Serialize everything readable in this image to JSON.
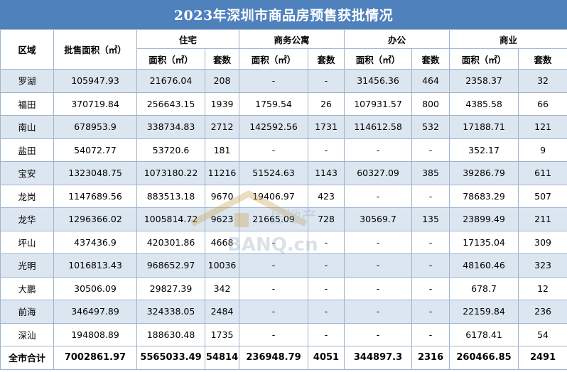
{
  "title": "2023年深圳市商品房预售获批情况",
  "headers": {
    "district": "区域",
    "total_area": "批售面积（㎡）",
    "groups": [
      "住宅",
      "商务公寓",
      "办公",
      "商业"
    ],
    "area": "面积（㎡）",
    "units": "套数"
  },
  "rows": [
    {
      "district": "罗湖",
      "total": "105947.93",
      "res_area": "21676.04",
      "res_units": "208",
      "apt_area": "-",
      "apt_units": "-",
      "off_area": "31456.36",
      "off_units": "464",
      "com_area": "2358.37",
      "com_units": "32"
    },
    {
      "district": "福田",
      "total": "370719.84",
      "res_area": "256643.15",
      "res_units": "1939",
      "apt_area": "1759.54",
      "apt_units": "26",
      "off_area": "107931.57",
      "off_units": "800",
      "com_area": "4385.58",
      "com_units": "66"
    },
    {
      "district": "南山",
      "total": "678953.9",
      "res_area": "338734.83",
      "res_units": "2712",
      "apt_area": "142592.56",
      "apt_units": "1731",
      "off_area": "114612.58",
      "off_units": "532",
      "com_area": "17188.71",
      "com_units": "121"
    },
    {
      "district": "盐田",
      "total": "54072.77",
      "res_area": "53720.6",
      "res_units": "181",
      "apt_area": "-",
      "apt_units": "-",
      "off_area": "-",
      "off_units": "-",
      "com_area": "352.17",
      "com_units": "9"
    },
    {
      "district": "宝安",
      "total": "1323048.75",
      "res_area": "1073180.22",
      "res_units": "11216",
      "apt_area": "51524.63",
      "apt_units": "1143",
      "off_area": "60327.09",
      "off_units": "385",
      "com_area": "39286.79",
      "com_units": "611"
    },
    {
      "district": "龙岗",
      "total": "1147689.56",
      "res_area": "883513.18",
      "res_units": "9670",
      "apt_area": "19406.97",
      "apt_units": "423",
      "off_area": "-",
      "off_units": "-",
      "com_area": "78683.29",
      "com_units": "507"
    },
    {
      "district": "龙华",
      "total": "1296366.02",
      "res_area": "1005814.72",
      "res_units": "9623",
      "apt_area": "21665.09",
      "apt_units": "728",
      "off_area": "30569.7",
      "off_units": "135",
      "com_area": "23899.49",
      "com_units": "211"
    },
    {
      "district": "坪山",
      "total": "437436.9",
      "res_area": "420301.86",
      "res_units": "4668",
      "apt_area": "-",
      "apt_units": "-",
      "off_area": "-",
      "off_units": "-",
      "com_area": "17135.04",
      "com_units": "309"
    },
    {
      "district": "光明",
      "total": "1016813.43",
      "res_area": "968652.97",
      "res_units": "10036",
      "apt_area": "-",
      "apt_units": "-",
      "off_area": "-",
      "off_units": "-",
      "com_area": "48160.46",
      "com_units": "323"
    },
    {
      "district": "大鹏",
      "total": "30506.09",
      "res_area": "29827.39",
      "res_units": "342",
      "apt_area": "-",
      "apt_units": "-",
      "off_area": "-",
      "off_units": "-",
      "com_area": "678.7",
      "com_units": "12"
    },
    {
      "district": "前海",
      "total": "346497.89",
      "res_area": "324338.05",
      "res_units": "2484",
      "apt_area": "-",
      "apt_units": "-",
      "off_area": "-",
      "off_units": "-",
      "com_area": "22159.84",
      "com_units": "236"
    },
    {
      "district": "深汕",
      "total": "194808.89",
      "res_area": "188630.48",
      "res_units": "1735",
      "apt_area": "-",
      "apt_units": "-",
      "off_area": "-",
      "off_units": "-",
      "com_area": "6178.41",
      "com_units": "54"
    }
  ],
  "total_row": {
    "district": "全市合计",
    "total": "7002861.97",
    "res_area": "5565033.49",
    "res_units": "54814",
    "apt_area": "236948.79",
    "apt_units": "4051",
    "off_area": "344897.3",
    "off_units": "2316",
    "com_area": "260466.85",
    "com_units": "2491"
  },
  "watermark": {
    "text": "房地产",
    "site": "BANQ.cn"
  },
  "colors": {
    "title_bg": "#4f81bd",
    "alt_row": "#dce6f1",
    "border": "#9fb4cc"
  }
}
